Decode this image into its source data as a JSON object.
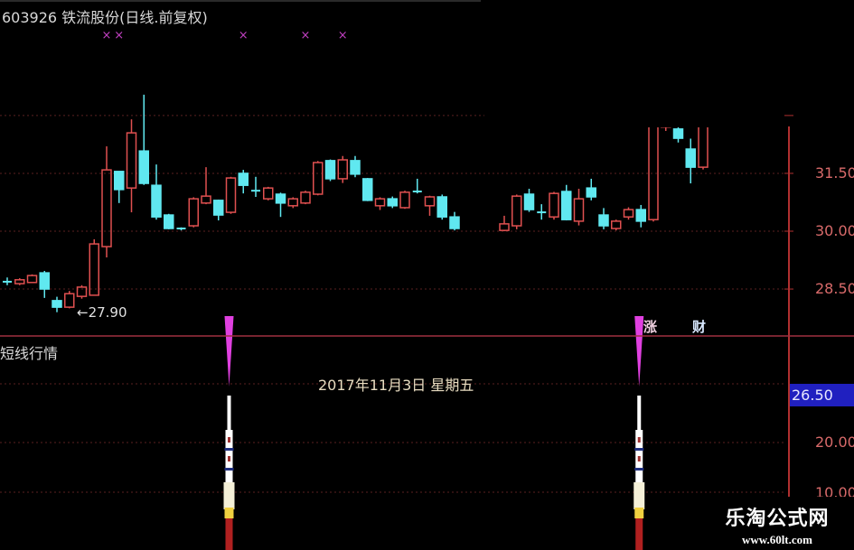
{
  "header": {
    "title": "603926 铁流股份(日线.前复权)"
  },
  "colors": {
    "up": "#e05050",
    "down": "#60e8f0",
    "axis": "#c03030",
    "marker": "#c040c0",
    "signal": "#e040e0"
  },
  "chart_data": {
    "type": "candlestick",
    "title": "603926 铁流股份(日线.前复权)",
    "ylim": [
      27.5,
      34.0
    ],
    "yticks": [
      "31.50",
      "30.00",
      "28.50"
    ],
    "ytick_values": [
      31.5,
      30.0,
      28.5
    ],
    "grid": true,
    "low_annotation": {
      "label": "27.90",
      "value": 27.9,
      "index": 4
    },
    "top_markers": {
      "symbol": "×",
      "indices": [
        8,
        9,
        19,
        24,
        27
      ]
    },
    "candles": [
      [
        28.69,
        28.69,
        28.8,
        28.6
      ],
      [
        28.64,
        28.74,
        28.78,
        28.6
      ],
      [
        28.67,
        28.85,
        28.88,
        28.67
      ],
      [
        28.92,
        28.5,
        28.97,
        28.27
      ],
      [
        28.2,
        28.03,
        28.3,
        27.9
      ],
      [
        28.03,
        28.38,
        28.45,
        28.0
      ],
      [
        28.31,
        28.55,
        28.6,
        28.25
      ],
      [
        28.34,
        29.67,
        29.79,
        28.34
      ],
      [
        29.6,
        31.59,
        32.2,
        29.32
      ],
      [
        31.55,
        31.08,
        31.55,
        30.73
      ],
      [
        31.12,
        32.55,
        32.9,
        30.49
      ],
      [
        32.08,
        31.24,
        33.54,
        31.2
      ],
      [
        31.19,
        30.37,
        31.73,
        30.3
      ],
      [
        30.42,
        30.07,
        30.45,
        30.05
      ],
      [
        30.07,
        30.07,
        30.1,
        30.02
      ],
      [
        30.14,
        30.84,
        30.88,
        30.1
      ],
      [
        30.73,
        30.91,
        31.66,
        30.7
      ],
      [
        30.8,
        30.42,
        30.82,
        30.28
      ],
      [
        30.49,
        31.38,
        31.41,
        30.45
      ],
      [
        31.5,
        31.19,
        31.59,
        30.98
      ],
      [
        31.05,
        31.05,
        31.41,
        30.89
      ],
      [
        30.84,
        31.12,
        31.15,
        30.8
      ],
      [
        30.96,
        30.73,
        31.0,
        30.37
      ],
      [
        30.66,
        30.84,
        30.88,
        30.6
      ],
      [
        30.73,
        31.01,
        31.05,
        30.7
      ],
      [
        30.96,
        31.78,
        31.82,
        30.93
      ],
      [
        31.83,
        31.36,
        31.86,
        31.3
      ],
      [
        31.36,
        31.85,
        31.95,
        31.25
      ],
      [
        31.83,
        31.48,
        31.95,
        31.4
      ],
      [
        31.36,
        30.8,
        31.38,
        30.78
      ],
      [
        30.66,
        30.84,
        30.88,
        30.55
      ],
      [
        30.84,
        30.66,
        30.9,
        30.6
      ],
      [
        30.61,
        31.01,
        31.05,
        30.58
      ],
      [
        31.03,
        31.03,
        31.36,
        30.98
      ],
      [
        30.66,
        30.89,
        30.92,
        30.4
      ],
      [
        30.89,
        30.37,
        30.95,
        30.3
      ],
      [
        30.37,
        30.07,
        30.5,
        30.02
      ],
      null,
      null,
      null,
      [
        30.02,
        30.19,
        30.4,
        30.0
      ],
      [
        30.14,
        30.91,
        30.95,
        30.05
      ],
      [
        30.96,
        30.56,
        31.1,
        30.5
      ],
      [
        30.49,
        30.49,
        30.7,
        30.3
      ],
      [
        30.37,
        30.98,
        31.02,
        30.3
      ],
      [
        31.03,
        30.3,
        31.2,
        30.28
      ],
      [
        30.26,
        30.84,
        31.1,
        30.15
      ],
      [
        31.12,
        30.89,
        31.36,
        30.8
      ],
      [
        30.42,
        30.14,
        30.6,
        30.05
      ],
      [
        30.07,
        30.26,
        30.3,
        30.02
      ],
      [
        30.37,
        30.56,
        30.62,
        30.3
      ],
      [
        30.56,
        30.26,
        30.68,
        30.1
      ],
      [
        30.3,
        33.0,
        33.2,
        30.25
      ],
      [
        32.7,
        33.2,
        33.3,
        32.6
      ],
      [
        32.65,
        32.41,
        32.7,
        32.3
      ],
      [
        32.13,
        31.66,
        32.4,
        31.24
      ],
      [
        31.66,
        33.0,
        33.1,
        31.6
      ]
    ]
  },
  "indicator": {
    "name": "短线行情",
    "date_text": "2017年11月3日  星期五",
    "current_value": "26.50",
    "axis_labels": [
      "20.00",
      "10.00"
    ],
    "signal_indices": [
      18,
      51
    ],
    "tags": [
      "涨",
      "财"
    ]
  },
  "watermark": {
    "name": "乐淘公式网",
    "url": "www.60lt.com"
  }
}
